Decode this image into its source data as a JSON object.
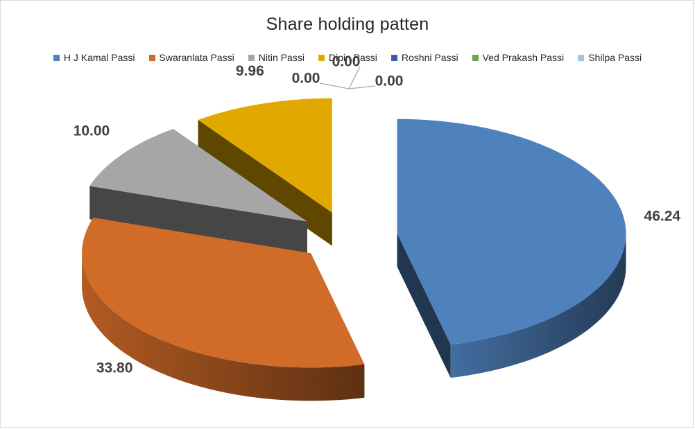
{
  "chart_data": {
    "type": "pie",
    "title": "Share holding patten",
    "categories": [
      "H J Kamal  Passi",
      "Swaranlata Passi",
      "Nitin Passi",
      "Dipin Passi",
      "Roshni Passi",
      "Ved Prakash Passi",
      "Shilpa Passi"
    ],
    "values": [
      46.24,
      33.8,
      10.0,
      9.96,
      0.0,
      0.0,
      0.0
    ],
    "value_labels": [
      "46.24",
      "33.80",
      "10.00",
      "9.96",
      "0.00",
      "0.00",
      "0.00"
    ],
    "colors": [
      "#4f81bd",
      "#d16b28",
      "#a6a6a6",
      "#e1a800",
      "#3a5ea8",
      "#6aa84f",
      "#9dc3e6"
    ],
    "legend_position": "top",
    "style": "exploded 3D pie"
  }
}
